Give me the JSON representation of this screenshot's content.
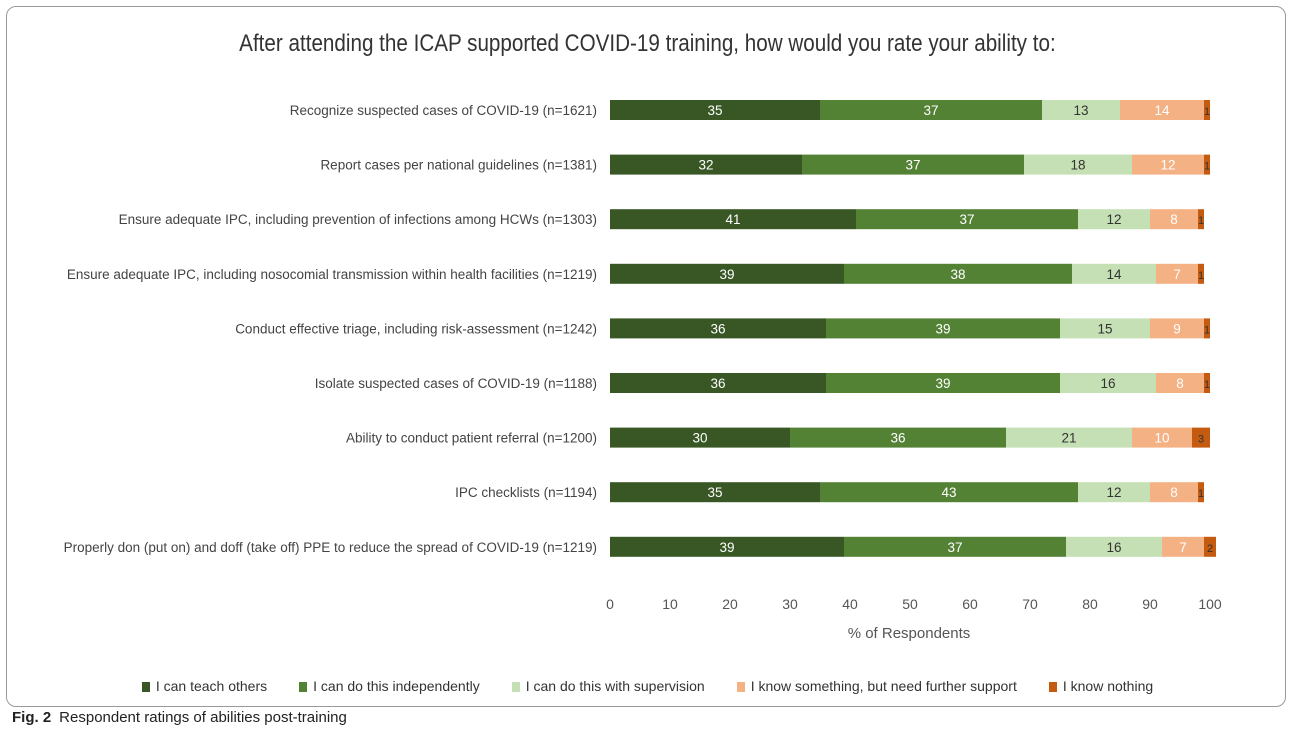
{
  "chart_data": {
    "type": "bar",
    "orientation": "horizontal",
    "stacked": true,
    "title": "After attending the ICAP supported COVID-19 training, how would you rate your ability to:",
    "xlabel": "% of Respondents",
    "ylabel": "",
    "xlim": [
      0,
      100
    ],
    "xticks": [
      0,
      10,
      20,
      30,
      40,
      50,
      60,
      70,
      80,
      90,
      100
    ],
    "grid": false,
    "legend_position": "bottom",
    "categories": [
      "Recognize suspected cases of COVID-19 (n=1621)",
      "Report cases per national guidelines (n=1381)",
      "Ensure adequate IPC, including prevention of infections among HCWs (n=1303)",
      "Ensure adequate IPC, including nosocomial transmission within health facilities (n=1219)",
      "Conduct effective triage, including risk-assessment (n=1242)",
      "Isolate suspected cases of COVID-19 (n=1188)",
      "Ability to conduct patient referral (n=1200)",
      "IPC checklists (n=1194)",
      "Properly don (put on) and doff (take off) PPE to reduce the spread of COVID-19 (n=1219)"
    ],
    "series": [
      {
        "name": "I can teach others",
        "color": "#385724",
        "values": [
          35,
          32,
          41,
          39,
          36,
          36,
          30,
          35,
          39
        ]
      },
      {
        "name": "I can do this independently",
        "color": "#548235",
        "values": [
          37,
          37,
          37,
          38,
          39,
          39,
          36,
          43,
          37
        ]
      },
      {
        "name": "I can do this with supervision",
        "color": "#c5e0b4",
        "values": [
          13,
          18,
          12,
          14,
          15,
          16,
          21,
          12,
          16
        ]
      },
      {
        "name": "I know something, but need further support",
        "color": "#f4b183",
        "values": [
          14,
          12,
          8,
          7,
          9,
          8,
          10,
          8,
          7
        ]
      },
      {
        "name": "I know nothing",
        "color": "#c55a11",
        "values": [
          1,
          1,
          1,
          1,
          1,
          1,
          3,
          1,
          2
        ]
      }
    ]
  },
  "caption": {
    "label": "Fig. 2",
    "text": "Respondent ratings of abilities post-training"
  }
}
